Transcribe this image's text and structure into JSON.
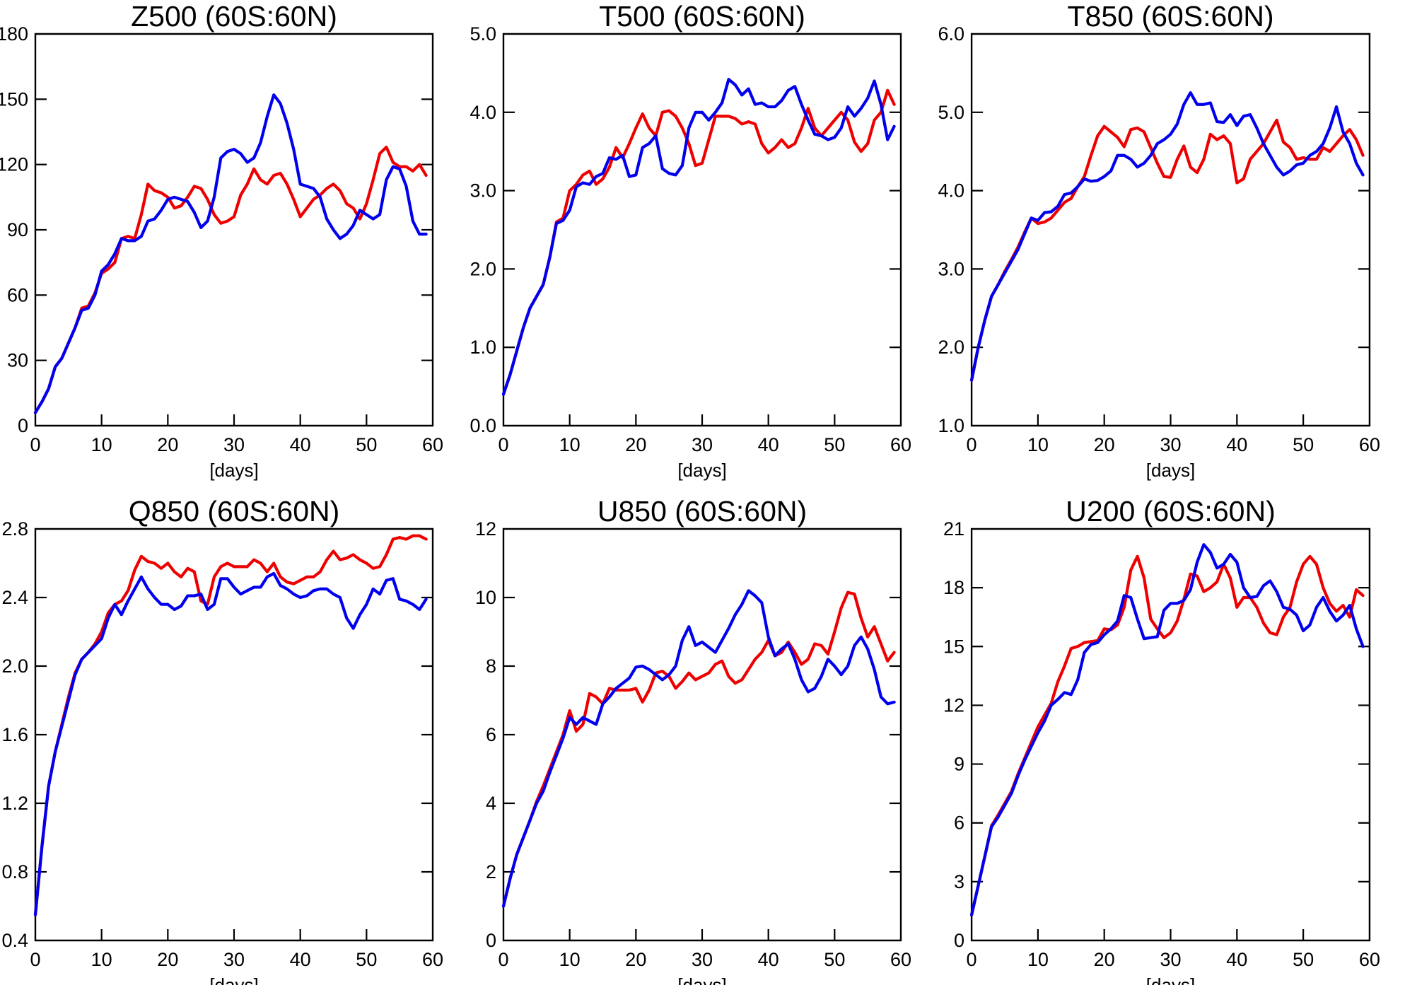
{
  "page": {
    "background": "#ffffff",
    "text_color": "#000000",
    "axis_color": "#000000"
  },
  "colors": {
    "red": "#ee0000",
    "blue": "#0000ee"
  },
  "days": [
    0,
    1,
    2,
    3,
    4,
    5,
    6,
    7,
    8,
    9,
    10,
    11,
    12,
    13,
    14,
    15,
    16,
    17,
    18,
    19,
    20,
    21,
    22,
    23,
    24,
    25,
    26,
    27,
    28,
    29,
    30,
    31,
    32,
    33,
    34,
    35,
    36,
    37,
    38,
    39,
    40,
    41,
    42,
    43,
    44,
    45,
    46,
    47,
    48,
    49,
    50,
    51,
    52,
    53,
    54,
    55,
    56,
    57,
    58,
    59
  ],
  "chart_data": [
    {
      "id": "z500",
      "type": "line",
      "title": "Z500 (60S:60N)",
      "xlabel": "[days]",
      "ylabel": "",
      "grid": false,
      "legend": "none",
      "xlim": [
        0,
        60
      ],
      "ylim": [
        0,
        180
      ],
      "x_ticks": [
        0,
        10,
        20,
        30,
        40,
        50,
        60
      ],
      "x_tick_labels": [
        "0",
        "10",
        "20",
        "30",
        "40",
        "50",
        "60"
      ],
      "y_ticks": [
        0,
        30,
        60,
        90,
        120,
        150,
        180
      ],
      "y_tick_labels": [
        "0",
        "30",
        "60",
        "90",
        "120",
        "150",
        "180"
      ],
      "series": [
        {
          "name": "red",
          "color": "red",
          "values": [
            6,
            11,
            17,
            27,
            31,
            38,
            45,
            54,
            55,
            61,
            70,
            72,
            75,
            86,
            87,
            86,
            97,
            111,
            108,
            107,
            105,
            100,
            101,
            105,
            110,
            109,
            104,
            97,
            93,
            94,
            96,
            106,
            111,
            118,
            113,
            111,
            115,
            116,
            111,
            104,
            96,
            100,
            104,
            106,
            109,
            111,
            108,
            102,
            100,
            95,
            102,
            113,
            125,
            128,
            121,
            119,
            119,
            117,
            120,
            115
          ]
        },
        {
          "name": "blue",
          "color": "blue",
          "values": [
            6,
            11,
            17,
            27,
            31,
            38,
            45,
            53,
            54,
            60,
            71,
            74,
            79,
            86,
            85,
            85,
            87,
            94,
            95,
            99,
            104,
            105,
            104,
            103,
            98,
            91,
            94,
            105,
            123,
            126,
            127,
            125,
            121,
            123,
            130,
            142,
            152,
            148,
            139,
            127,
            111,
            110,
            109,
            105,
            95,
            90,
            86,
            88,
            92,
            99,
            97,
            95,
            97,
            113,
            119,
            118,
            110,
            94,
            88,
            88
          ]
        }
      ]
    },
    {
      "id": "t500",
      "type": "line",
      "title": "T500 (60S:60N)",
      "xlabel": "[days]",
      "ylabel": "",
      "grid": false,
      "legend": "none",
      "xlim": [
        0,
        60
      ],
      "ylim": [
        0,
        5
      ],
      "x_ticks": [
        0,
        10,
        20,
        30,
        40,
        50,
        60
      ],
      "x_tick_labels": [
        "0",
        "10",
        "20",
        "30",
        "40",
        "50",
        "60"
      ],
      "y_ticks": [
        0,
        1,
        2,
        3,
        4,
        5
      ],
      "y_tick_labels": [
        "0.0",
        "1.0",
        "2.0",
        "3.0",
        "4.0",
        "5.0"
      ],
      "series": [
        {
          "name": "red",
          "color": "red",
          "values": [
            0.4,
            0.65,
            0.95,
            1.25,
            1.5,
            1.65,
            1.8,
            2.15,
            2.6,
            2.65,
            3.0,
            3.08,
            3.2,
            3.25,
            3.08,
            3.15,
            3.3,
            3.55,
            3.42,
            3.6,
            3.8,
            3.98,
            3.8,
            3.7,
            4.0,
            4.02,
            3.95,
            3.8,
            3.6,
            3.32,
            3.35,
            3.65,
            3.95,
            3.95,
            3.95,
            3.92,
            3.85,
            3.88,
            3.85,
            3.6,
            3.48,
            3.55,
            3.65,
            3.55,
            3.6,
            3.8,
            4.05,
            3.8,
            3.7,
            3.8,
            3.9,
            4.0,
            3.9,
            3.62,
            3.5,
            3.6,
            3.9,
            4.0,
            4.28,
            4.1
          ]
        },
        {
          "name": "blue",
          "color": "blue",
          "values": [
            0.4,
            0.65,
            0.95,
            1.25,
            1.5,
            1.65,
            1.8,
            2.15,
            2.58,
            2.62,
            2.75,
            3.05,
            3.1,
            3.08,
            3.18,
            3.22,
            3.42,
            3.4,
            3.45,
            3.18,
            3.2,
            3.55,
            3.6,
            3.7,
            3.28,
            3.22,
            3.2,
            3.32,
            3.8,
            4.0,
            4.0,
            3.9,
            4.0,
            4.12,
            4.42,
            4.35,
            4.22,
            4.3,
            4.1,
            4.12,
            4.07,
            4.07,
            4.15,
            4.28,
            4.33,
            4.1,
            3.9,
            3.72,
            3.7,
            3.65,
            3.68,
            3.8,
            4.07,
            3.95,
            4.05,
            4.18,
            4.4,
            4.1,
            3.65,
            3.82
          ]
        }
      ]
    },
    {
      "id": "t850",
      "type": "line",
      "title": "T850 (60S:60N)",
      "xlabel": "[days]",
      "ylabel": "",
      "grid": false,
      "legend": "none",
      "xlim": [
        0,
        60
      ],
      "ylim": [
        1,
        6
      ],
      "x_ticks": [
        0,
        10,
        20,
        30,
        40,
        50,
        60
      ],
      "x_tick_labels": [
        "0",
        "10",
        "20",
        "30",
        "40",
        "50",
        "60"
      ],
      "y_ticks": [
        1,
        2,
        3,
        4,
        5,
        6
      ],
      "y_tick_labels": [
        "1.0",
        "2.0",
        "3.0",
        "4.0",
        "5.0",
        "6.0"
      ],
      "series": [
        {
          "name": "red",
          "color": "red",
          "values": [
            1.58,
            2.0,
            2.35,
            2.65,
            2.8,
            2.97,
            3.12,
            3.28,
            3.47,
            3.65,
            3.58,
            3.6,
            3.65,
            3.75,
            3.85,
            3.9,
            4.05,
            4.18,
            4.45,
            4.7,
            4.82,
            4.75,
            4.68,
            4.56,
            4.78,
            4.8,
            4.75,
            4.55,
            4.35,
            4.18,
            4.17,
            4.4,
            4.57,
            4.3,
            4.23,
            4.4,
            4.72,
            4.65,
            4.7,
            4.6,
            4.1,
            4.15,
            4.4,
            4.5,
            4.6,
            4.75,
            4.9,
            4.62,
            4.55,
            4.4,
            4.42,
            4.4,
            4.4,
            4.55,
            4.5,
            4.6,
            4.7,
            4.78,
            4.65,
            4.45
          ]
        },
        {
          "name": "blue",
          "color": "blue",
          "values": [
            1.58,
            2.0,
            2.35,
            2.65,
            2.8,
            2.95,
            3.1,
            3.25,
            3.45,
            3.65,
            3.62,
            3.72,
            3.73,
            3.8,
            3.95,
            3.97,
            4.05,
            4.15,
            4.12,
            4.13,
            4.18,
            4.25,
            4.45,
            4.45,
            4.4,
            4.3,
            4.35,
            4.45,
            4.6,
            4.65,
            4.72,
            4.85,
            5.1,
            5.25,
            5.1,
            5.1,
            5.12,
            4.88,
            4.87,
            4.97,
            4.83,
            4.95,
            4.97,
            4.8,
            4.6,
            4.45,
            4.3,
            4.2,
            4.25,
            4.33,
            4.35,
            4.45,
            4.5,
            4.6,
            4.8,
            5.07,
            4.75,
            4.6,
            4.35,
            4.2
          ]
        }
      ]
    },
    {
      "id": "q850",
      "type": "line",
      "title": "Q850 (60S:60N)",
      "xlabel": "[days]",
      "ylabel": "",
      "grid": false,
      "legend": "none",
      "xlim": [
        0,
        60
      ],
      "ylim": [
        0.4,
        2.8
      ],
      "x_ticks": [
        0,
        10,
        20,
        30,
        40,
        50,
        60
      ],
      "x_tick_labels": [
        "0",
        "10",
        "20",
        "30",
        "40",
        "50",
        "60"
      ],
      "y_ticks": [
        0.4,
        0.8,
        1.2,
        1.6,
        2.0,
        2.4,
        2.8
      ],
      "y_tick_labels": [
        "0.4",
        "0.8",
        "1.2",
        "1.6",
        "2.0",
        "2.4",
        "2.8"
      ],
      "series": [
        {
          "name": "red",
          "color": "red",
          "values": [
            0.55,
            0.95,
            1.3,
            1.5,
            1.66,
            1.82,
            1.96,
            2.04,
            2.08,
            2.13,
            2.2,
            2.31,
            2.36,
            2.38,
            2.44,
            2.56,
            2.64,
            2.61,
            2.6,
            2.57,
            2.6,
            2.55,
            2.52,
            2.57,
            2.55,
            2.38,
            2.36,
            2.52,
            2.58,
            2.6,
            2.58,
            2.58,
            2.58,
            2.62,
            2.6,
            2.55,
            2.6,
            2.52,
            2.49,
            2.48,
            2.5,
            2.52,
            2.52,
            2.55,
            2.62,
            2.67,
            2.62,
            2.63,
            2.65,
            2.62,
            2.6,
            2.57,
            2.58,
            2.65,
            2.74,
            2.75,
            2.74,
            2.76,
            2.76,
            2.74
          ]
        },
        {
          "name": "blue",
          "color": "blue",
          "values": [
            0.55,
            0.95,
            1.3,
            1.5,
            1.65,
            1.8,
            1.95,
            2.04,
            2.08,
            2.12,
            2.16,
            2.28,
            2.36,
            2.3,
            2.38,
            2.45,
            2.52,
            2.45,
            2.4,
            2.36,
            2.36,
            2.33,
            2.35,
            2.41,
            2.41,
            2.42,
            2.33,
            2.36,
            2.51,
            2.51,
            2.46,
            2.42,
            2.44,
            2.46,
            2.46,
            2.52,
            2.54,
            2.47,
            2.45,
            2.42,
            2.4,
            2.41,
            2.44,
            2.45,
            2.45,
            2.42,
            2.4,
            2.28,
            2.22,
            2.3,
            2.36,
            2.45,
            2.42,
            2.5,
            2.51,
            2.39,
            2.38,
            2.36,
            2.33,
            2.39
          ]
        }
      ]
    },
    {
      "id": "u850",
      "type": "line",
      "title": "U850 (60S:60N)",
      "xlabel": "[days]",
      "ylabel": "",
      "grid": false,
      "legend": "none",
      "xlim": [
        0,
        60
      ],
      "ylim": [
        0,
        12
      ],
      "x_ticks": [
        0,
        10,
        20,
        30,
        40,
        50,
        60
      ],
      "x_tick_labels": [
        "0",
        "10",
        "20",
        "30",
        "40",
        "50",
        "60"
      ],
      "y_ticks": [
        0,
        2,
        4,
        6,
        8,
        10,
        12
      ],
      "y_tick_labels": [
        "0",
        "2",
        "4",
        "6",
        "8",
        "10",
        "12"
      ],
      "series": [
        {
          "name": "red",
          "color": "red",
          "values": [
            1.0,
            1.8,
            2.5,
            3.0,
            3.5,
            4.05,
            4.5,
            5.0,
            5.5,
            6.0,
            6.7,
            6.1,
            6.3,
            7.2,
            7.1,
            6.9,
            7.35,
            7.3,
            7.3,
            7.3,
            7.35,
            6.95,
            7.3,
            7.8,
            7.85,
            7.7,
            7.35,
            7.55,
            7.8,
            7.6,
            7.7,
            7.8,
            8.05,
            8.15,
            7.7,
            7.5,
            7.6,
            7.9,
            8.2,
            8.4,
            8.75,
            8.3,
            8.4,
            8.7,
            8.4,
            8.05,
            8.2,
            8.65,
            8.6,
            8.35,
            9.0,
            9.7,
            10.15,
            10.1,
            9.4,
            8.85,
            9.15,
            8.65,
            8.15,
            8.4
          ]
        },
        {
          "name": "blue",
          "color": "blue",
          "values": [
            1.0,
            1.8,
            2.5,
            3.0,
            3.5,
            4.0,
            4.35,
            4.9,
            5.4,
            5.9,
            6.5,
            6.3,
            6.5,
            6.4,
            6.3,
            6.9,
            7.1,
            7.35,
            7.5,
            7.65,
            7.97,
            8.0,
            7.9,
            7.75,
            7.6,
            7.75,
            8.0,
            8.75,
            9.15,
            8.6,
            8.7,
            8.55,
            8.4,
            8.75,
            9.1,
            9.5,
            9.8,
            10.2,
            10.05,
            9.85,
            8.85,
            8.3,
            8.5,
            8.65,
            8.2,
            7.6,
            7.25,
            7.35,
            7.7,
            8.2,
            8.0,
            7.75,
            8.0,
            8.6,
            8.85,
            8.5,
            7.9,
            7.1,
            6.9,
            6.95
          ]
        }
      ]
    },
    {
      "id": "u200",
      "type": "line",
      "title": "U200 (60S:60N)",
      "xlabel": "[days]",
      "ylabel": "",
      "grid": false,
      "legend": "none",
      "xlim": [
        0,
        60
      ],
      "ylim": [
        0,
        21
      ],
      "x_ticks": [
        0,
        10,
        20,
        30,
        40,
        50,
        60
      ],
      "x_tick_labels": [
        "0",
        "10",
        "20",
        "30",
        "40",
        "50",
        "60"
      ],
      "y_ticks": [
        0,
        3,
        6,
        9,
        12,
        15,
        18,
        21
      ],
      "y_tick_labels": [
        "0",
        "3",
        "6",
        "9",
        "12",
        "15",
        "18",
        "21"
      ],
      "series": [
        {
          "name": "red",
          "color": "red",
          "values": [
            1.3,
            2.8,
            4.3,
            5.85,
            6.4,
            7.0,
            7.6,
            8.5,
            9.3,
            10.1,
            10.9,
            11.5,
            12.1,
            13.2,
            14.0,
            14.9,
            15.0,
            15.2,
            15.25,
            15.3,
            15.9,
            15.85,
            16.1,
            17.0,
            18.9,
            19.6,
            18.5,
            16.4,
            15.9,
            15.45,
            15.7,
            16.3,
            17.4,
            18.7,
            18.6,
            17.8,
            18.0,
            18.3,
            19.2,
            18.5,
            17.0,
            17.5,
            17.5,
            17.0,
            16.2,
            15.7,
            15.6,
            16.5,
            17.0,
            18.3,
            19.2,
            19.6,
            19.2,
            18.0,
            17.2,
            16.8,
            17.1,
            16.5,
            17.9,
            17.6
          ]
        },
        {
          "name": "blue",
          "color": "blue",
          "values": [
            1.3,
            2.8,
            4.3,
            5.8,
            6.3,
            6.9,
            7.5,
            8.4,
            9.2,
            9.9,
            10.6,
            11.2,
            12.0,
            12.3,
            12.65,
            12.55,
            13.3,
            14.7,
            15.1,
            15.2,
            15.6,
            15.9,
            16.3,
            17.6,
            17.5,
            16.4,
            15.4,
            15.45,
            15.5,
            16.85,
            17.2,
            17.2,
            17.35,
            17.9,
            19.3,
            20.2,
            19.8,
            19.0,
            19.2,
            19.7,
            19.3,
            18.0,
            17.5,
            17.55,
            18.1,
            18.35,
            17.8,
            17.0,
            16.9,
            16.6,
            15.8,
            16.1,
            17.0,
            17.5,
            16.8,
            16.3,
            16.6,
            17.1,
            15.9,
            15.0
          ]
        }
      ]
    }
  ]
}
